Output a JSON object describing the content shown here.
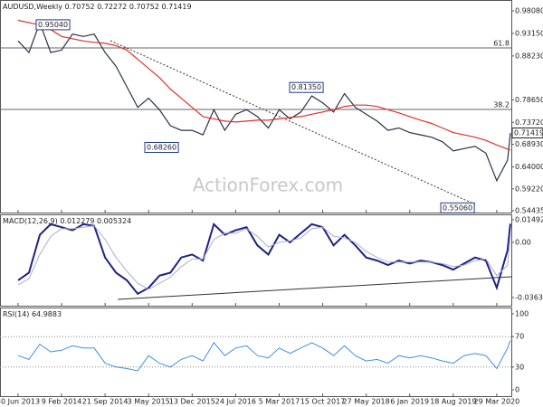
{
  "chart_data": {
    "type": "line",
    "title": "AUDUSD,Weekly",
    "ohlc": [
      0.70752,
      0.72272,
      0.70752,
      0.71419
    ],
    "watermark": "ActionForex.com",
    "x": [
      "2013-06-30",
      "2013-08-25",
      "2013-10-20",
      "2013-12-15",
      "2014-02-09",
      "2014-04-06",
      "2014-06-01",
      "2014-07-27",
      "2014-09-21",
      "2014-11-16",
      "2015-01-11",
      "2015-03-08",
      "2015-05-03",
      "2015-06-28",
      "2015-08-23",
      "2015-10-18",
      "2015-12-13",
      "2016-02-07",
      "2016-04-03",
      "2016-05-29",
      "2016-07-24",
      "2016-09-18",
      "2016-11-13",
      "2017-01-08",
      "2017-03-05",
      "2017-04-30",
      "2017-06-25",
      "2017-08-20",
      "2017-10-15",
      "2017-12-10",
      "2018-02-04",
      "2018-04-01",
      "2018-05-27",
      "2018-07-22",
      "2018-09-16",
      "2018-11-11",
      "2019-01-06",
      "2019-03-03",
      "2019-04-28",
      "2019-06-23",
      "2019-08-18",
      "2019-10-13",
      "2019-12-08",
      "2020-02-02",
      "2020-03-29",
      "2020-05-24",
      "2020-06-07"
    ],
    "xlim": [
      "2013-03-29",
      "2020-06-12"
    ],
    "xticks": [
      {
        "value": "2013-06-30",
        "label": "30 Jun 2013"
      },
      {
        "value": "2014-02-09",
        "label": "9 Feb 2014"
      },
      {
        "value": "2014-09-21",
        "label": "21 Sep 2014"
      },
      {
        "value": "2015-05-03",
        "label": "3 May 2015"
      },
      {
        "value": "2015-12-13",
        "label": "13 Dec 2015"
      },
      {
        "value": "2016-07-24",
        "label": "24 Jul 2016"
      },
      {
        "value": "2017-03-05",
        "label": "5 Mar 2017"
      },
      {
        "value": "2017-10-15",
        "label": "15 Oct 2017"
      },
      {
        "value": "2018-05-27",
        "label": "27 May 2018"
      },
      {
        "value": "2019-01-06",
        "label": "6 Jan 2019"
      },
      {
        "value": "2019-08-18",
        "label": "18 Aug 2019"
      },
      {
        "value": "2020-03-29",
        "label": "29 Mar 2020"
      }
    ],
    "panels": [
      {
        "ylim": [
          0.5404,
          1.0045
        ],
        "yticks": [
          {
            "value": 0.9808,
            "label": "0.98080"
          },
          {
            "value": 0.9315,
            "label": "0.93150"
          },
          {
            "value": 0.8823,
            "label": "0.88230"
          },
          {
            "value": 0.7865,
            "label": "0.78650"
          },
          {
            "value": 0.7372,
            "label": "0.73720"
          },
          {
            "value": 0.6893,
            "label": "0.68930"
          },
          {
            "value": 0.64,
            "label": "0.64000"
          },
          {
            "value": 0.5922,
            "label": "0.59220"
          },
          {
            "value": 0.54435,
            "label": "0.54435"
          }
        ],
        "series": [
          {
            "name": "AUDUSD",
            "color": "#2a3148",
            "values": [
              0.915,
              0.89,
              0.955,
              0.89,
              0.895,
              0.93,
              0.925,
              0.93,
              0.89,
              0.86,
              0.815,
              0.77,
              0.79,
              0.765,
              0.73,
              0.72,
              0.72,
              0.71,
              0.765,
              0.72,
              0.755,
              0.765,
              0.75,
              0.725,
              0.765,
              0.745,
              0.76,
              0.795,
              0.78,
              0.76,
              0.8,
              0.77,
              0.755,
              0.74,
              0.72,
              0.725,
              0.715,
              0.71,
              0.705,
              0.695,
              0.675,
              0.68,
              0.685,
              0.67,
              0.61,
              0.655,
              0.71419
            ]
          },
          {
            "name": "MA",
            "color": "#e0302a",
            "values": [
              0.96,
              0.955,
              0.95,
              0.94,
              0.925,
              0.92,
              0.915,
              0.912,
              0.91,
              0.905,
              0.895,
              0.875,
              0.855,
              0.835,
              0.81,
              0.79,
              0.77,
              0.75,
              0.745,
              0.74,
              0.738,
              0.74,
              0.742,
              0.742,
              0.745,
              0.748,
              0.75,
              0.755,
              0.76,
              0.765,
              0.772,
              0.775,
              0.775,
              0.772,
              0.765,
              0.758,
              0.75,
              0.742,
              0.735,
              0.725,
              0.715,
              0.71,
              0.705,
              0.698,
              0.688,
              0.679,
              0.677
            ]
          }
        ],
        "fib_levels": [
          {
            "level": 61.8,
            "price": 0.8998
          },
          {
            "level": 38.2,
            "price": 0.7655
          }
        ],
        "price_labels": [
          {
            "value": 0.9504,
            "label": "0.95040"
          },
          {
            "value": 0.8135,
            "label": "0.81350"
          },
          {
            "value": 0.6826,
            "label": "0.68260"
          },
          {
            "value": 0.5506,
            "label": "0.55060"
          }
        ]
      },
      {
        "label": "MACD(12,26,9)",
        "ylim": [
          -0.0418,
          0.0185
        ],
        "yticks": [
          0.014925,
          {
            "value": 0,
            "label": "0.00"
          },
          -0.036389
        ],
        "series": [
          {
            "name": "MACD",
            "color": "#1c2484",
            "width": 2,
            "values": [
              -0.025,
              -0.02,
              0.005,
              0.012,
              0.01,
              0.008,
              0.012,
              0.011,
              -0.01,
              -0.02,
              -0.025,
              -0.034,
              -0.03,
              -0.022,
              -0.02,
              -0.01,
              -0.008,
              -0.012,
              0.012,
              0.005,
              0.008,
              0.01,
              -0.002,
              -0.008,
              0.005,
              0,
              0.006,
              0.012,
              0.01,
              -0.002,
              0.005,
              -0.002,
              -0.01,
              -0.012,
              -0.015,
              -0.012,
              -0.014,
              -0.012,
              -0.013,
              -0.015,
              -0.018,
              -0.014,
              -0.01,
              -0.012,
              -0.03,
              -0.005,
              0.012279
            ]
          },
          {
            "name": "Signal",
            "color": "#a9aecb",
            "width": 1,
            "values": [
              -0.028,
              -0.024,
              -0.008,
              0.004,
              0.009,
              0.009,
              0.01,
              0.011,
              0.002,
              -0.01,
              -0.019,
              -0.027,
              -0.031,
              -0.027,
              -0.023,
              -0.016,
              -0.011,
              -0.011,
              0.002,
              0.006,
              0.006,
              0.009,
              0.004,
              -0.003,
              0.0,
              0.001,
              0.003,
              0.009,
              0.01,
              0.004,
              0.003,
              0.0,
              -0.006,
              -0.01,
              -0.013,
              -0.013,
              -0.013,
              -0.013,
              -0.013,
              -0.014,
              -0.016,
              -0.015,
              -0.012,
              -0.011,
              -0.022,
              -0.015,
              0.005324
            ]
          }
        ]
      },
      {
        "label": "RSI(14)",
        "ylim": [
          -8.3,
          108.3
        ],
        "yticks": [
          100,
          70,
          30,
          0
        ],
        "levels": [
          70,
          30
        ],
        "series": [
          {
            "name": "RSI",
            "color": "#3f8ee0",
            "width": 1,
            "values": [
              45,
              40,
              60,
              50,
              52,
              58,
              55,
              55,
              35,
              30,
              28,
              25,
              45,
              35,
              30,
              40,
              45,
              38,
              62,
              45,
              55,
              58,
              45,
              42,
              55,
              48,
              55,
              62,
              55,
              45,
              58,
              45,
              38,
              40,
              35,
              45,
              42,
              45,
              42,
              38,
              35,
              45,
              48,
              45,
              28,
              55,
              64.9883
            ]
          }
        ]
      }
    ]
  }
}
